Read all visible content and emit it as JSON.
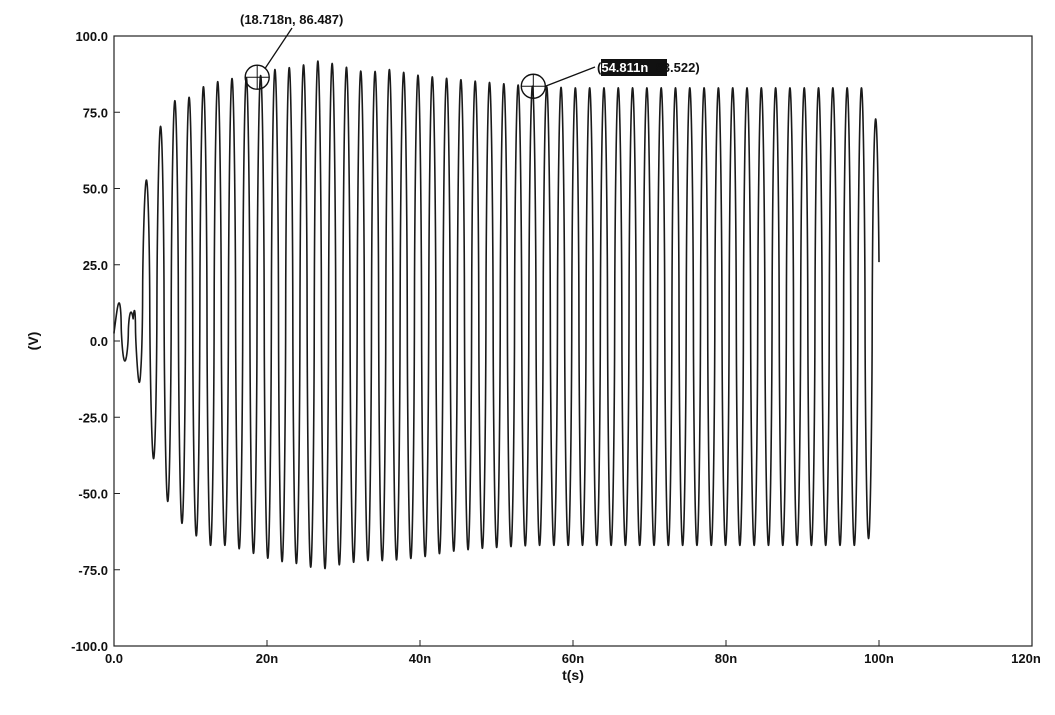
{
  "chart_data": {
    "type": "line",
    "xlabel": "t(s)",
    "ylabel": "(V)",
    "xlim": [
      0,
      120
    ],
    "ylim": [
      -100,
      100
    ],
    "x_unit": "ns",
    "x_ticks": [
      0,
      20,
      40,
      60,
      80,
      100,
      120
    ],
    "x_tick_labels": [
      "0.0",
      "20n",
      "40n",
      "60n",
      "80n",
      "100n",
      "120n"
    ],
    "y_ticks": [
      100,
      75,
      50,
      25,
      0,
      -25,
      -50,
      -75,
      -100
    ],
    "y_tick_labels": [
      "100.0",
      "75.0",
      "50.0",
      "25.0",
      "0.0",
      "-25.0",
      "-50.0",
      "-75.0",
      "-100.0"
    ],
    "grid": false,
    "series": [
      {
        "signal": {
          "start": 0,
          "end": 100,
          "period_ns": 1.87,
          "envelope": [
            {
              "t": 0.0,
              "max": 5,
              "min": 0
            },
            {
              "t": 1.0,
              "max": 18,
              "min": -6
            },
            {
              "t": 2.5,
              "max": 8,
              "min": -8
            },
            {
              "t": 3.5,
              "max": 47,
              "min": -15
            },
            {
              "t": 4.5,
              "max": 55,
              "min": -32
            },
            {
              "t": 6.0,
              "max": 70,
              "min": -47
            },
            {
              "t": 8.0,
              "max": 79,
              "min": -58
            },
            {
              "t": 10.0,
              "max": 80,
              "min": -62
            },
            {
              "t": 12.0,
              "max": 84,
              "min": -67
            },
            {
              "t": 15.0,
              "max": 86,
              "min": -67
            },
            {
              "t": 18.7,
              "max": 86.5,
              "min": -70
            },
            {
              "t": 21.0,
              "max": 89,
              "min": -72
            },
            {
              "t": 24.0,
              "max": 90,
              "min": -73
            },
            {
              "t": 27.0,
              "max": 92,
              "min": -75
            },
            {
              "t": 30.0,
              "max": 90,
              "min": -73
            },
            {
              "t": 33.0,
              "max": 88,
              "min": -72
            },
            {
              "t": 36.0,
              "max": 89,
              "min": -72
            },
            {
              "t": 40.0,
              "max": 87,
              "min": -71
            },
            {
              "t": 44.0,
              "max": 86,
              "min": -69
            },
            {
              "t": 48.0,
              "max": 85,
              "min": -68
            },
            {
              "t": 54.8,
              "max": 83.5,
              "min": -67
            },
            {
              "t": 60.0,
              "max": 83,
              "min": -67
            },
            {
              "t": 98.0,
              "max": 83,
              "min": -67
            },
            {
              "t": 100.0,
              "max": 70,
              "min": -60
            }
          ]
        }
      }
    ],
    "annotations": [
      {
        "x": 18.718,
        "y": 86.487,
        "label": "(18.718n, 86.487)",
        "highlight": ""
      },
      {
        "x": 54.811,
        "y": 83.522,
        "label": "(54.811n, 83.522)",
        "highlight": "54.811n"
      }
    ]
  }
}
